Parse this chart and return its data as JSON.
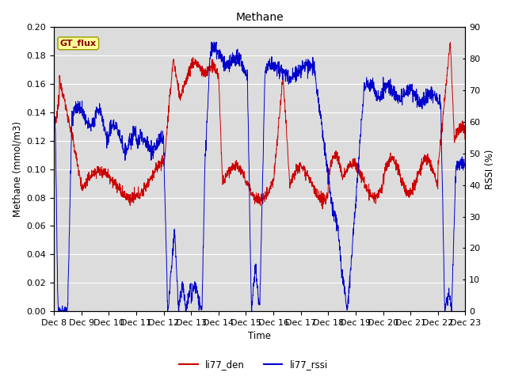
{
  "title": "Methane",
  "xlabel": "Time",
  "ylabel_left": "Methane (mmol/m3)",
  "ylabel_right": "RSSI (%)",
  "xlim_start": 0,
  "xlim_end": 15,
  "ylim_left": [
    0.0,
    0.2
  ],
  "ylim_right": [
    0,
    90
  ],
  "yticks_left": [
    0.0,
    0.02,
    0.04,
    0.06,
    0.08,
    0.1,
    0.12,
    0.14,
    0.16,
    0.18,
    0.2
  ],
  "yticks_right": [
    0,
    10,
    20,
    30,
    40,
    50,
    60,
    70,
    80,
    90
  ],
  "xtick_labels": [
    "Dec 8",
    "Dec 9",
    "Dec 10",
    "Dec 11",
    "Dec 12",
    "Dec 13",
    "Dec 14",
    "Dec 15",
    "Dec 16",
    "Dec 17",
    "Dec 18",
    "Dec 19",
    "Dec 20",
    "Dec 21",
    "Dec 22",
    "Dec 23"
  ],
  "color_den": "#CC0000",
  "color_rssi": "#0000CC",
  "bg_color": "#DCDCDC",
  "legend_label_den": "li77_den",
  "legend_label_rssi": "li77_rssi",
  "gt_flux_label": "GT_flux",
  "gt_flux_color": "#FFFF99",
  "gt_flux_border": "#999900"
}
